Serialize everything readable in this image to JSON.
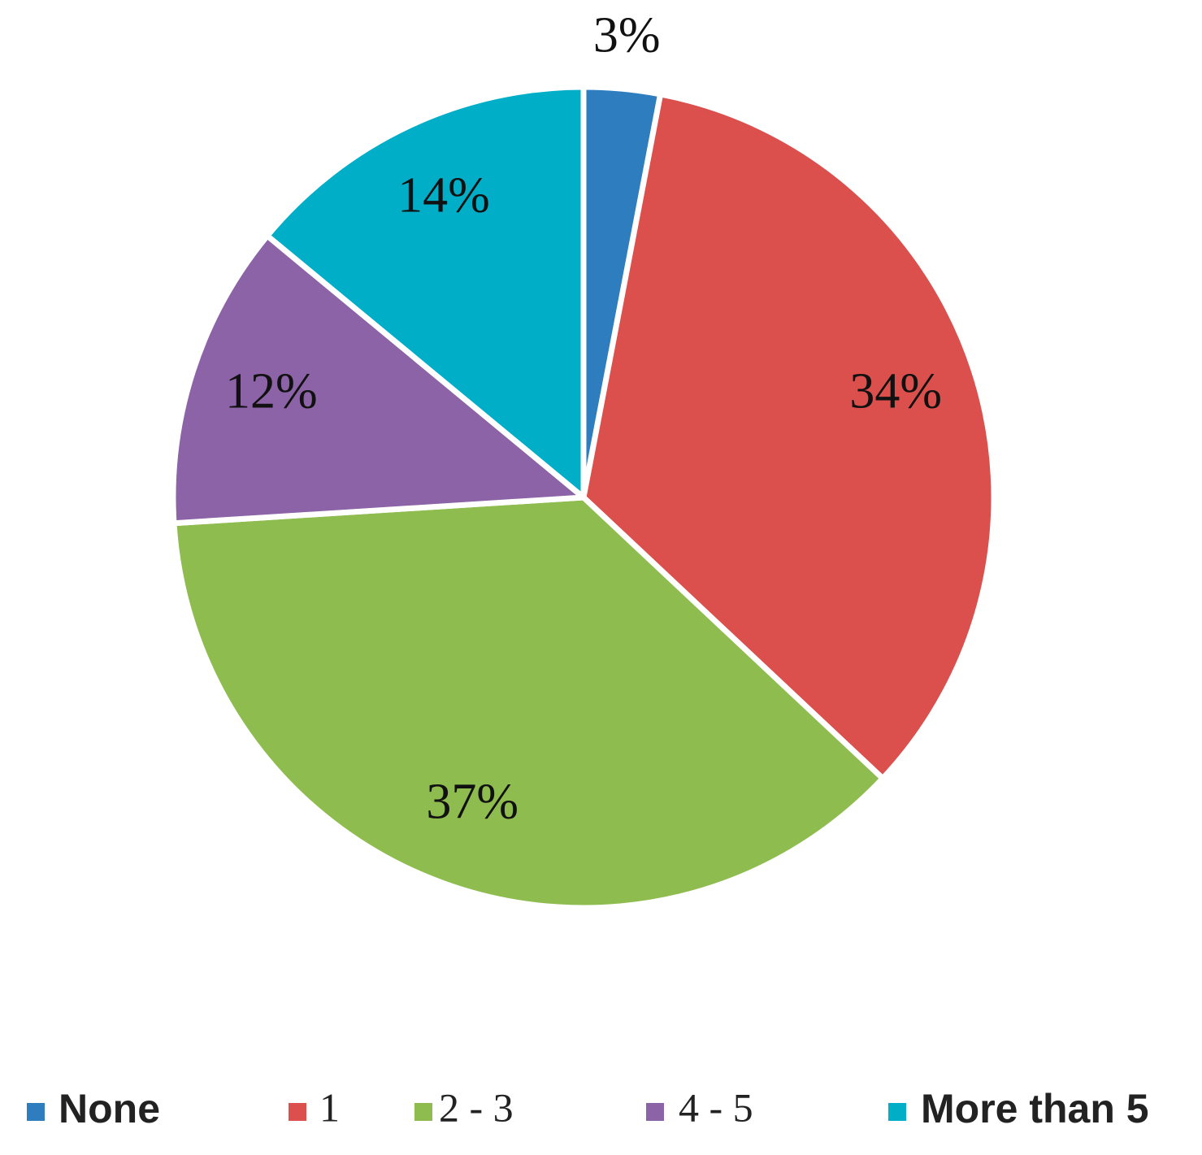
{
  "chart_data": {
    "type": "pie",
    "categories": [
      "None",
      "1",
      "2 - 3",
      "4 - 5",
      "More than 5"
    ],
    "values": [
      3,
      34,
      37,
      12,
      14
    ],
    "value_labels": [
      "3%",
      "34%",
      "37%",
      "12%",
      "14%"
    ],
    "colors": [
      "#2e7ebf",
      "#db4f4c",
      "#8fbc4f",
      "#8b63a6",
      "#00aec7"
    ],
    "legend": "bottom"
  }
}
